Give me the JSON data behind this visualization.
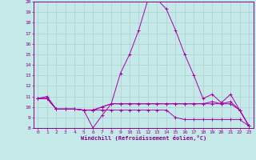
{
  "xlabel": "Windchill (Refroidissement éolien,°C)",
  "background_color": "#c5e8e8",
  "grid_color": "#aad0d0",
  "line_color": "#aa00aa",
  "xlim": [
    -0.5,
    23.5
  ],
  "ylim": [
    8,
    20
  ],
  "yticks": [
    8,
    9,
    10,
    11,
    12,
    13,
    14,
    15,
    16,
    17,
    18,
    19,
    20
  ],
  "xticks": [
    0,
    1,
    2,
    3,
    4,
    5,
    6,
    7,
    8,
    9,
    10,
    11,
    12,
    13,
    14,
    15,
    16,
    17,
    18,
    19,
    20,
    21,
    22,
    23
  ],
  "series": [
    {
      "x": [
        0,
        1,
        2,
        3,
        4,
        5,
        6,
        7,
        8,
        9,
        10,
        11,
        12,
        13,
        14,
        15,
        16,
        17,
        18,
        19,
        20,
        21,
        22,
        23
      ],
      "y": [
        10.8,
        11.0,
        9.8,
        9.8,
        9.8,
        9.7,
        8.0,
        9.2,
        10.3,
        13.2,
        15.0,
        17.3,
        20.2,
        20.2,
        19.3,
        17.3,
        15.0,
        13.0,
        10.8,
        11.2,
        10.4,
        11.2,
        9.7,
        8.2
      ]
    },
    {
      "x": [
        0,
        1,
        2,
        3,
        4,
        5,
        6,
        7,
        8,
        9,
        10,
        11,
        12,
        13,
        14,
        15,
        16,
        17,
        18,
        19,
        20,
        21,
        22,
        23
      ],
      "y": [
        10.8,
        10.8,
        9.8,
        9.8,
        9.8,
        9.7,
        9.7,
        9.7,
        9.7,
        9.7,
        9.7,
        9.7,
        9.7,
        9.7,
        9.7,
        9.0,
        8.8,
        8.8,
        8.8,
        8.8,
        8.8,
        8.8,
        8.8,
        8.2
      ]
    },
    {
      "x": [
        0,
        1,
        2,
        3,
        4,
        5,
        6,
        7,
        8,
        9,
        10,
        11,
        12,
        13,
        14,
        15,
        16,
        17,
        18,
        19,
        20,
        21,
        22,
        23
      ],
      "y": [
        10.8,
        10.8,
        9.8,
        9.8,
        9.8,
        9.7,
        9.7,
        10.0,
        10.3,
        10.3,
        10.3,
        10.3,
        10.3,
        10.3,
        10.3,
        10.3,
        10.3,
        10.3,
        10.3,
        10.3,
        10.3,
        10.3,
        9.7,
        8.2
      ]
    },
    {
      "x": [
        0,
        1,
        2,
        3,
        4,
        5,
        6,
        7,
        8,
        9,
        10,
        11,
        12,
        13,
        14,
        15,
        16,
        17,
        18,
        19,
        20,
        21,
        22,
        23
      ],
      "y": [
        10.8,
        10.8,
        9.8,
        9.8,
        9.8,
        9.7,
        9.7,
        10.0,
        10.3,
        10.3,
        10.3,
        10.3,
        10.3,
        10.3,
        10.3,
        10.3,
        10.3,
        10.3,
        10.3,
        10.5,
        10.3,
        10.5,
        9.7,
        8.2
      ]
    }
  ]
}
